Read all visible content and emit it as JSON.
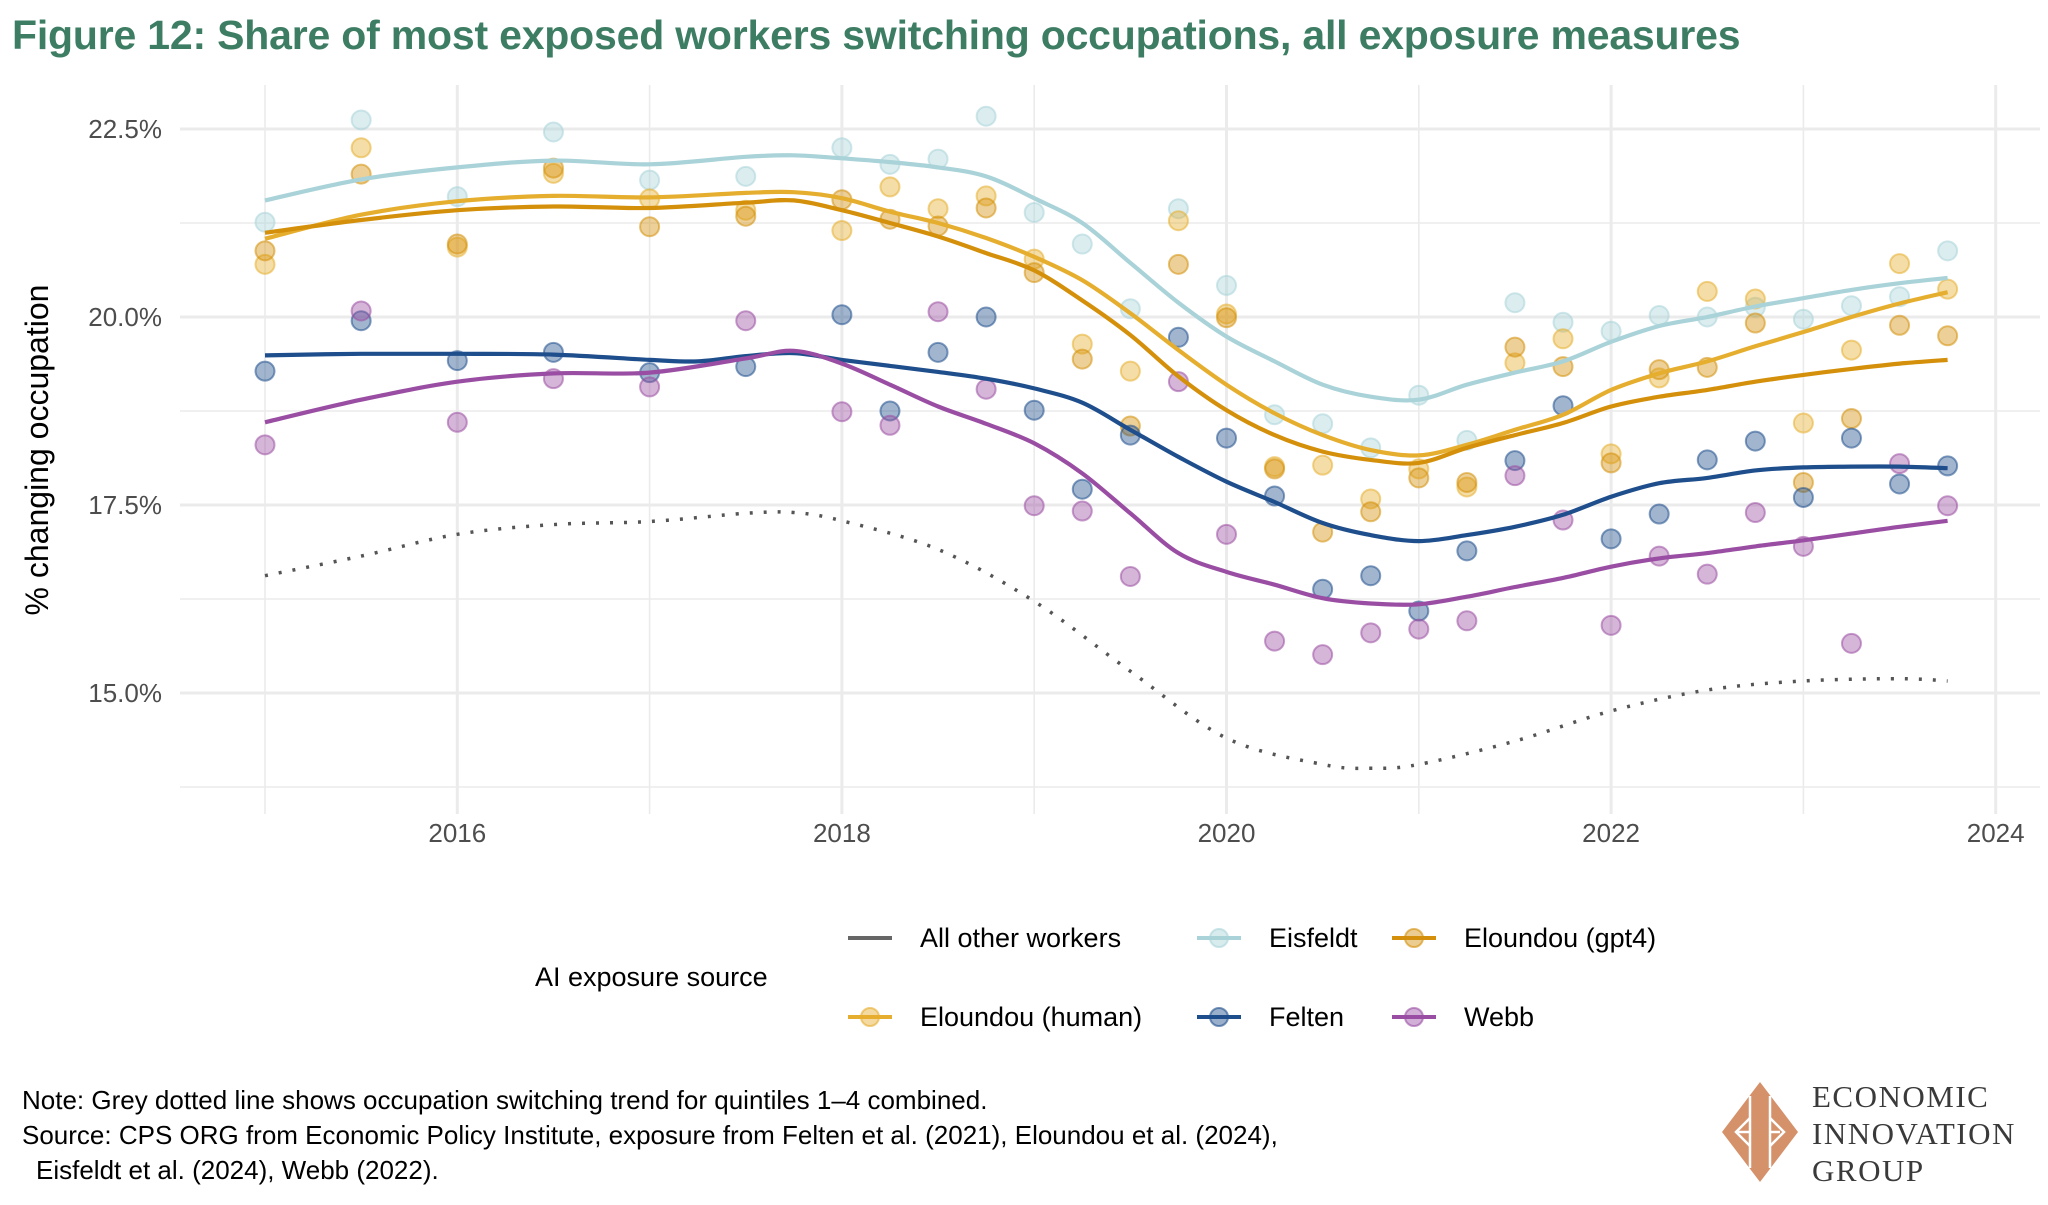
{
  "title": "Figure 12: Share of most exposed workers switching occupations, all exposure measures",
  "legend": {
    "title": "AI exposure source",
    "items": [
      {
        "key": "other",
        "label": "All other workers"
      },
      {
        "key": "eisfeldt",
        "label": "Eisfeldt"
      },
      {
        "key": "gpt4",
        "label": "Eloundou (gpt4)"
      },
      {
        "key": "human",
        "label": "Eloundou (human)"
      },
      {
        "key": "felten",
        "label": "Felten"
      },
      {
        "key": "webb",
        "label": "Webb"
      }
    ]
  },
  "notes": {
    "line1": "Note: Grey dotted line shows occupation switching trend for quintiles 1–4 combined.",
    "line2": "Source: CPS ORG from Economic Policy Institute, exposure from Felten et al. (2021), Eloundou et al. (2024),",
    "line3": "Eisfeldt et al. (2024), Webb (2022)."
  },
  "logo": {
    "line1": "ECONOMIC",
    "line2": "INNOVATION",
    "line3": "GROUP",
    "color": "#d4916a"
  },
  "chart_data": {
    "type": "scatter",
    "title": "Figure 12: Share of most exposed workers switching occupations, all exposure measures",
    "xlabel": "",
    "ylabel": "% changing occupation",
    "xlim": [
      2014.6,
      2024.2
    ],
    "ylim": [
      13.75,
      23.1
    ],
    "xticks": [
      2016,
      2018,
      2020,
      2022,
      2024
    ],
    "xtick_labels": [
      "2016",
      "2018",
      "2020",
      "2022",
      "2024"
    ],
    "yticks": [
      15.0,
      17.5,
      20.0,
      22.5
    ],
    "ytick_labels": [
      "15.0%",
      "17.5%",
      "20.0%",
      "22.5%"
    ],
    "grid": true,
    "legend_position": "bottom",
    "x": [
      2015.0,
      2015.5,
      2016.0,
      2016.5,
      2017.0,
      2017.5,
      2018.0,
      2018.25,
      2018.5,
      2018.75,
      2019.0,
      2019.25,
      2019.5,
      2019.75,
      2020.0,
      2020.25,
      2020.5,
      2020.75,
      2021.0,
      2021.25,
      2021.5,
      2021.75,
      2022.0,
      2022.25,
      2022.5,
      2022.75,
      2023.0,
      2023.25,
      2023.5,
      2023.75
    ],
    "series": [
      {
        "key": "eisfeldt",
        "name": "Eisfeldt",
        "color": "#a9d3d8",
        "points": [
          21.26,
          22.62,
          21.6,
          22.46,
          21.82,
          21.87,
          22.25,
          22.03,
          22.1,
          22.67,
          21.39,
          20.97,
          20.11,
          21.44,
          20.42,
          18.7,
          18.58,
          18.26,
          18.96,
          18.36,
          20.19,
          19.93,
          19.81,
          20.02,
          20.0,
          20.13,
          19.97,
          20.15,
          20.27,
          20.88
        ],
        "trend_x": [
          2015.0,
          2015.5,
          2016.0,
          2016.5,
          2017.0,
          2017.5,
          2017.75,
          2018.0,
          2018.25,
          2018.5,
          2018.75,
          2019.0,
          2019.25,
          2019.5,
          2019.75,
          2020.0,
          2020.25,
          2020.5,
          2020.75,
          2021.0,
          2021.25,
          2021.5,
          2021.75,
          2022.0,
          2022.25,
          2022.5,
          2022.75,
          2023.0,
          2023.25,
          2023.5,
          2023.75
        ],
        "trend": [
          21.55,
          21.83,
          21.99,
          22.08,
          22.03,
          22.13,
          22.15,
          22.11,
          22.06,
          21.99,
          21.87,
          21.58,
          21.25,
          20.72,
          20.19,
          19.74,
          19.41,
          19.1,
          18.94,
          18.9,
          19.1,
          19.26,
          19.41,
          19.67,
          19.88,
          20.0,
          20.14,
          20.25,
          20.36,
          20.45,
          20.52
        ]
      },
      {
        "key": "gpt4",
        "name": "Eloundou (gpt4)",
        "color": "#d4900a",
        "points": [
          20.88,
          21.9,
          20.97,
          21.98,
          21.2,
          21.34,
          21.56,
          21.3,
          21.21,
          21.45,
          20.59,
          19.44,
          18.55,
          20.7,
          19.99,
          17.98,
          17.14,
          17.41,
          17.86,
          17.8,
          19.6,
          19.34,
          18.06,
          19.3,
          19.33,
          19.92,
          17.8,
          18.65,
          19.89,
          19.75
        ],
        "trend_x": [
          2015.0,
          2015.5,
          2016.0,
          2016.5,
          2017.0,
          2017.5,
          2017.75,
          2018.0,
          2018.25,
          2018.5,
          2018.75,
          2019.0,
          2019.25,
          2019.5,
          2019.75,
          2020.0,
          2020.25,
          2020.5,
          2020.75,
          2021.0,
          2021.25,
          2021.5,
          2021.75,
          2022.0,
          2022.25,
          2022.5,
          2022.75,
          2023.0,
          2023.25,
          2023.5,
          2023.75
        ],
        "trend": [
          21.12,
          21.29,
          21.42,
          21.47,
          21.45,
          21.52,
          21.55,
          21.42,
          21.25,
          21.07,
          20.85,
          20.62,
          20.22,
          19.76,
          19.21,
          18.76,
          18.43,
          18.21,
          18.1,
          18.06,
          18.26,
          18.43,
          18.59,
          18.81,
          18.94,
          19.03,
          19.14,
          19.23,
          19.31,
          19.38,
          19.43
        ]
      },
      {
        "key": "human",
        "name": "Eloundou (human)",
        "color": "#e6ae2e",
        "points": [
          20.7,
          22.25,
          20.93,
          21.91,
          21.57,
          21.42,
          21.15,
          21.73,
          21.44,
          21.61,
          20.77,
          19.64,
          19.28,
          21.28,
          20.04,
          18.01,
          18.03,
          17.58,
          17.98,
          17.74,
          19.39,
          19.71,
          18.18,
          19.19,
          20.34,
          20.24,
          18.59,
          19.56,
          20.71,
          20.37
        ],
        "trend_x": [
          2015.0,
          2015.5,
          2016.0,
          2016.5,
          2017.0,
          2017.5,
          2017.75,
          2018.0,
          2018.25,
          2018.5,
          2018.75,
          2019.0,
          2019.25,
          2019.5,
          2019.75,
          2020.0,
          2020.25,
          2020.5,
          2020.75,
          2021.0,
          2021.25,
          2021.5,
          2021.75,
          2022.0,
          2022.25,
          2022.5,
          2022.75,
          2023.0,
          2023.25,
          2023.5,
          2023.75
        ],
        "trend": [
          21.04,
          21.36,
          21.54,
          21.61,
          21.59,
          21.65,
          21.66,
          21.58,
          21.4,
          21.25,
          21.05,
          20.8,
          20.49,
          20.05,
          19.56,
          19.1,
          18.72,
          18.43,
          18.23,
          18.16,
          18.3,
          18.5,
          18.7,
          19.03,
          19.25,
          19.41,
          19.61,
          19.8,
          20.0,
          20.18,
          20.33
        ]
      },
      {
        "key": "felten",
        "name": "Felten",
        "color": "#1f4e8c",
        "points": [
          19.28,
          19.95,
          19.42,
          19.53,
          19.26,
          19.34,
          20.03,
          18.75,
          19.53,
          20.0,
          18.76,
          17.71,
          18.43,
          19.73,
          18.39,
          17.62,
          16.38,
          16.56,
          16.09,
          16.89,
          18.09,
          18.82,
          17.05,
          17.38,
          18.1,
          18.35,
          17.6,
          18.39,
          17.78,
          18.02
        ],
        "trend_x": [
          2015.0,
          2015.5,
          2016.0,
          2016.5,
          2017.0,
          2017.25,
          2017.5,
          2017.75,
          2018.0,
          2018.25,
          2018.5,
          2018.75,
          2019.0,
          2019.25,
          2019.5,
          2019.75,
          2020.0,
          2020.25,
          2020.5,
          2020.75,
          2021.0,
          2021.25,
          2021.5,
          2021.75,
          2022.0,
          2022.25,
          2022.5,
          2022.75,
          2023.0,
          2023.25,
          2023.5,
          2023.75
        ],
        "trend": [
          19.49,
          19.51,
          19.51,
          19.5,
          19.43,
          19.41,
          19.48,
          19.52,
          19.43,
          19.35,
          19.27,
          19.18,
          19.05,
          18.86,
          18.5,
          18.14,
          17.81,
          17.54,
          17.26,
          17.1,
          17.02,
          17.1,
          17.21,
          17.37,
          17.61,
          17.79,
          17.86,
          17.96,
          18.0,
          18.01,
          18.01,
          17.99
        ]
      },
      {
        "key": "webb",
        "name": "Webb",
        "color": "#9a4ea3",
        "points": [
          18.3,
          20.08,
          18.6,
          19.18,
          19.07,
          19.95,
          18.74,
          18.56,
          20.07,
          19.04,
          17.49,
          17.42,
          16.55,
          19.14,
          17.11,
          15.69,
          15.51,
          15.8,
          15.85,
          15.96,
          17.89,
          17.3,
          15.9,
          16.82,
          16.58,
          17.4,
          16.95,
          15.66,
          18.05,
          17.49
        ],
        "trend_x": [
          2015.0,
          2015.5,
          2016.0,
          2016.5,
          2017.0,
          2017.5,
          2017.75,
          2018.0,
          2018.25,
          2018.5,
          2018.75,
          2019.0,
          2019.25,
          2019.5,
          2019.75,
          2020.0,
          2020.25,
          2020.5,
          2020.75,
          2021.0,
          2021.25,
          2021.5,
          2021.75,
          2022.0,
          2022.25,
          2022.5,
          2022.75,
          2023.0,
          2023.25,
          2023.5,
          2023.75
        ],
        "trend": [
          18.6,
          18.9,
          19.14,
          19.25,
          19.26,
          19.45,
          19.55,
          19.38,
          19.1,
          18.81,
          18.58,
          18.32,
          17.92,
          17.39,
          16.86,
          16.61,
          16.44,
          16.26,
          16.19,
          16.18,
          16.28,
          16.41,
          16.53,
          16.68,
          16.79,
          16.86,
          16.95,
          17.03,
          17.12,
          17.21,
          17.29
        ]
      },
      {
        "key": "other",
        "name": "All other workers",
        "color": "#555555",
        "style": "dotted",
        "points": [],
        "trend_x": [
          2015.0,
          2015.5,
          2016.0,
          2016.5,
          2017.0,
          2017.5,
          2017.75,
          2018.0,
          2018.5,
          2019.0,
          2019.5,
          2020.0,
          2020.5,
          2020.75,
          2021.0,
          2021.5,
          2022.0,
          2022.5,
          2023.0,
          2023.5,
          2023.75
        ],
        "trend": [
          16.56,
          16.82,
          17.11,
          17.24,
          17.28,
          17.39,
          17.4,
          17.29,
          16.91,
          16.22,
          15.29,
          14.4,
          14.05,
          14.0,
          14.05,
          14.36,
          14.76,
          15.04,
          15.16,
          15.19,
          15.16
        ]
      }
    ]
  }
}
